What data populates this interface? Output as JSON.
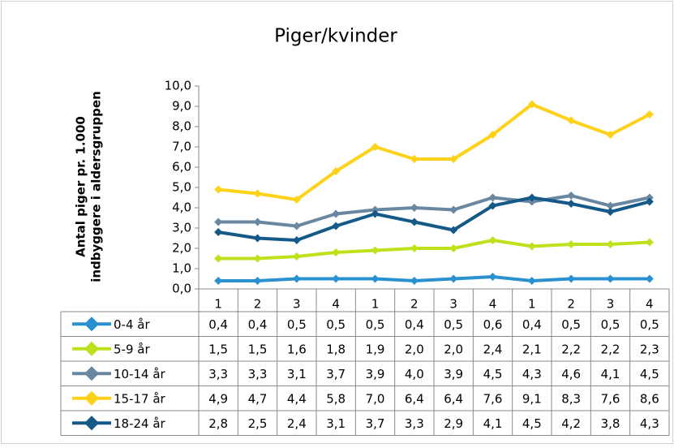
{
  "chart_data": {
    "type": "line",
    "title": "Piger/kvinder",
    "y_label": [
      "Antal piger pr. 1.000",
      "indbyggere i aldersgruppen"
    ],
    "categories": [
      "1",
      "2",
      "3",
      "4",
      "1",
      "2",
      "3",
      "4",
      "1",
      "2",
      "3",
      "4"
    ],
    "ylim": [
      0,
      10
    ],
    "yticks": [
      {
        "value": 0,
        "label": "0,0"
      },
      {
        "value": 1,
        "label": "1,0"
      },
      {
        "value": 2,
        "label": "2,0"
      },
      {
        "value": 3,
        "label": "3,0"
      },
      {
        "value": 4,
        "label": "4,0"
      },
      {
        "value": 5,
        "label": "5,0"
      },
      {
        "value": 6,
        "label": "6,0"
      },
      {
        "value": 7,
        "label": "7,0"
      },
      {
        "value": 8,
        "label": "8,0"
      },
      {
        "value": 9,
        "label": "9,0"
      },
      {
        "value": 10,
        "label": "10,0"
      }
    ],
    "grid": false,
    "series": [
      {
        "name": "0-4 år",
        "color": "#2a91d0",
        "values": [
          0.4,
          0.4,
          0.5,
          0.5,
          0.5,
          0.4,
          0.5,
          0.6,
          0.4,
          0.5,
          0.5,
          0.5
        ],
        "value_labels": [
          "0,4",
          "0,4",
          "0,5",
          "0,5",
          "0,5",
          "0,4",
          "0,5",
          "0,6",
          "0,4",
          "0,5",
          "0,5",
          "0,5"
        ]
      },
      {
        "name": "5-9 år",
        "color": "#bde21c",
        "values": [
          1.5,
          1.5,
          1.6,
          1.8,
          1.9,
          2.0,
          2.0,
          2.4,
          2.1,
          2.2,
          2.2,
          2.3
        ],
        "value_labels": [
          "1,5",
          "1,5",
          "1,6",
          "1,8",
          "1,9",
          "2,0",
          "2,0",
          "2,4",
          "2,1",
          "2,2",
          "2,2",
          "2,3"
        ]
      },
      {
        "name": "10-14 år",
        "color": "#6a87a2",
        "values": [
          3.3,
          3.3,
          3.1,
          3.7,
          3.9,
          4.0,
          3.9,
          4.5,
          4.3,
          4.6,
          4.1,
          4.5
        ],
        "value_labels": [
          "3,3",
          "3,3",
          "3,1",
          "3,7",
          "3,9",
          "4,0",
          "3,9",
          "4,5",
          "4,3",
          "4,6",
          "4,1",
          "4,5"
        ]
      },
      {
        "name": "15-17 år",
        "color": "#ffd21a",
        "values": [
          4.9,
          4.7,
          4.4,
          5.8,
          7.0,
          6.4,
          6.4,
          7.6,
          9.1,
          8.3,
          7.6,
          8.6
        ],
        "value_labels": [
          "4,9",
          "4,7",
          "4,4",
          "5,8",
          "7,0",
          "6,4",
          "6,4",
          "7,6",
          "9,1",
          "8,3",
          "7,6",
          "8,6"
        ]
      },
      {
        "name": "18-24 år",
        "color": "#145987",
        "values": [
          2.8,
          2.5,
          2.4,
          3.1,
          3.7,
          3.3,
          2.9,
          4.1,
          4.5,
          4.2,
          3.8,
          4.3
        ],
        "value_labels": [
          "2,8",
          "2,5",
          "2,4",
          "3,1",
          "3,7",
          "3,3",
          "2,9",
          "4,1",
          "4,5",
          "4,2",
          "3,8",
          "4,3"
        ]
      }
    ]
  }
}
